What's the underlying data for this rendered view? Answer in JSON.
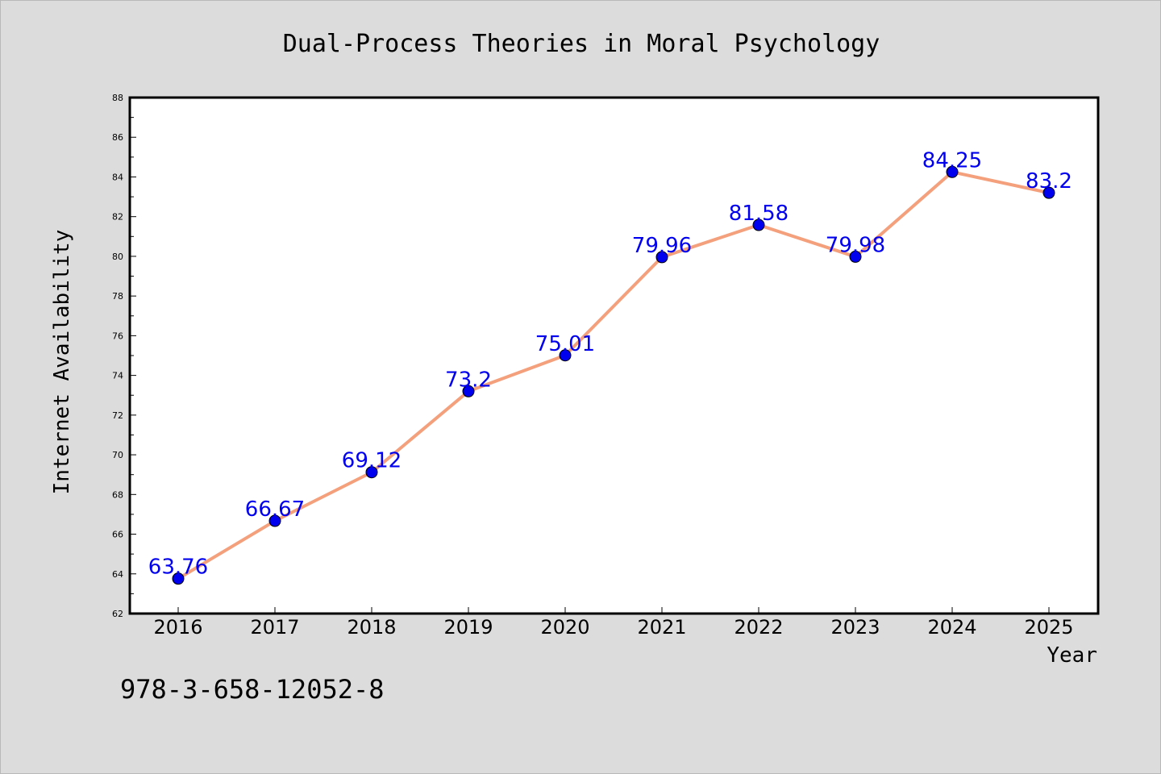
{
  "chart_data": {
    "type": "line",
    "title": "Dual-Process Theories in Moral Psychology",
    "xlabel": "Year",
    "ylabel": "Internet Availability",
    "x": [
      "2016",
      "2017",
      "2018",
      "2019",
      "2020",
      "2021",
      "2022",
      "2023",
      "2024",
      "2025"
    ],
    "series": [
      {
        "values": [
          63.76,
          66.67,
          69.12,
          73.2,
          75.01,
          79.96,
          81.58,
          79.98,
          84.25,
          83.2
        ],
        "data_labels": [
          "63.76",
          "66.67",
          "69.12",
          "73.2",
          "75.01",
          "79.96",
          "81.58",
          "79.98",
          "84.25",
          "83.2"
        ],
        "line_color": "#f4a07c",
        "marker_color": "#0000ee"
      }
    ],
    "ylim": [
      62,
      88
    ],
    "yticks": [
      "62",
      "64",
      "66",
      "68",
      "70",
      "72",
      "74",
      "76",
      "78",
      "80",
      "82",
      "84",
      "86",
      "88"
    ],
    "grid": false,
    "legend": "none"
  },
  "annotation": {
    "text": "978-3-658-12052-8"
  },
  "colors": {
    "background": "#dcdcdc",
    "plot_area": "#ffffff",
    "axis": "#000000",
    "label_text": "#0000ee"
  }
}
